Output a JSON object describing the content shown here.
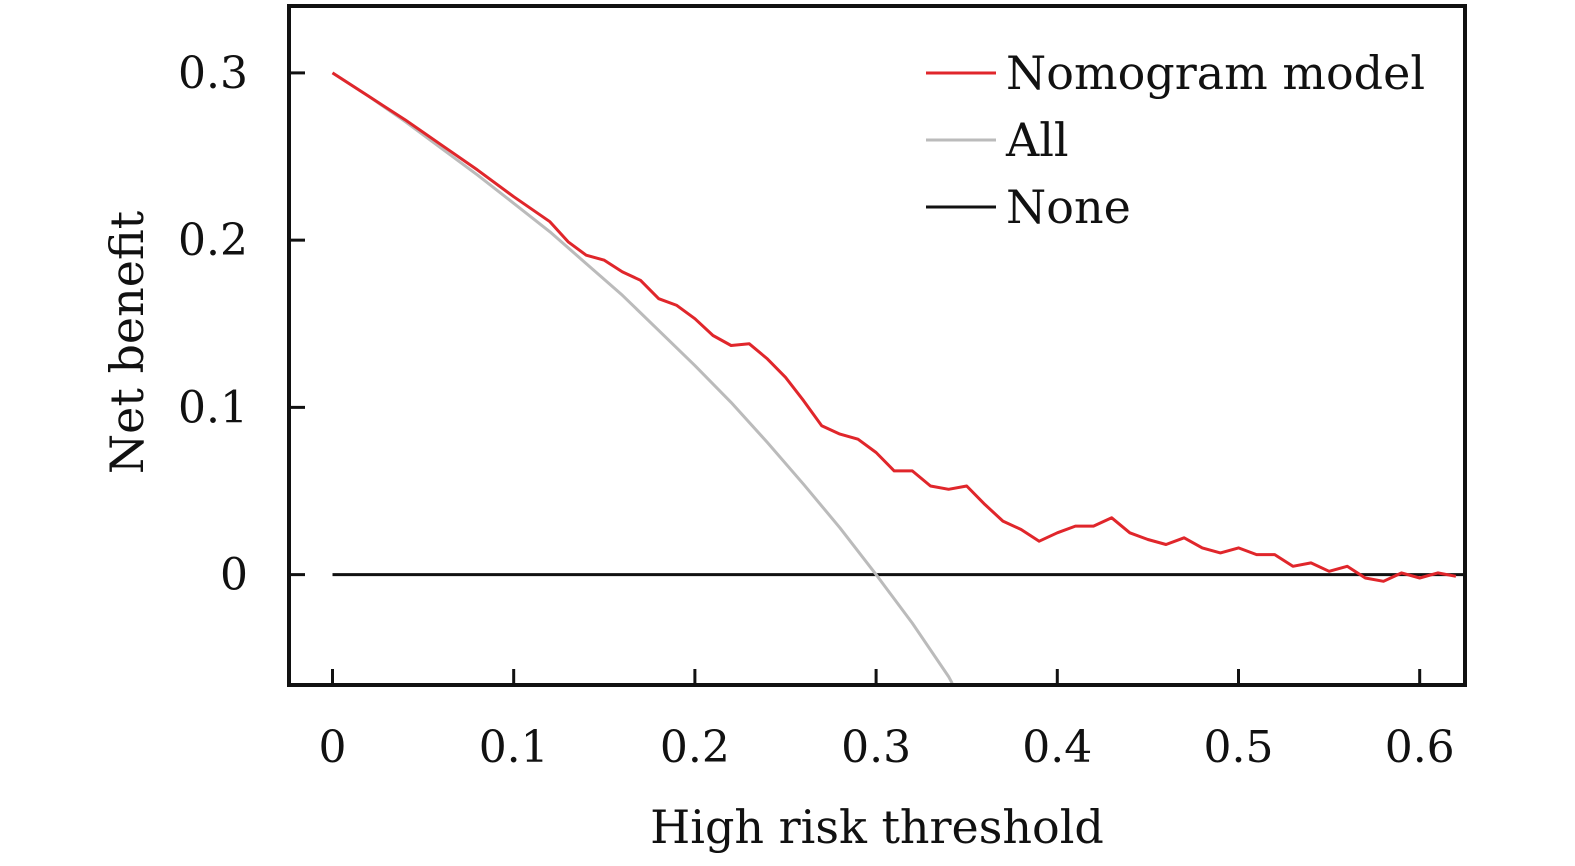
{
  "chart_data": {
    "type": "line",
    "xlabel": "High risk threshold",
    "ylabel": "Net benefit",
    "xlim": [
      -0.024,
      0.625
    ],
    "ylim": [
      -0.066,
      0.34
    ],
    "xticks": [
      0,
      0.1,
      0.2,
      0.3,
      0.4,
      0.5,
      0.6
    ],
    "xtick_labels": [
      "0",
      "0.1",
      "0.2",
      "0.3",
      "0.4",
      "0.5",
      "0.6"
    ],
    "yticks": [
      0,
      0.1,
      0.2,
      0.3
    ],
    "ytick_labels": [
      "0",
      "0.1",
      "0.2",
      "0.3"
    ],
    "grid": false,
    "legend": {
      "position": "top-right"
    },
    "series": [
      {
        "name": "Nomogram model",
        "color": "#e0262b",
        "x": [
          0,
          0.02,
          0.04,
          0.06,
          0.08,
          0.1,
          0.12,
          0.13,
          0.14,
          0.15,
          0.16,
          0.17,
          0.18,
          0.19,
          0.2,
          0.21,
          0.22,
          0.23,
          0.24,
          0.25,
          0.26,
          0.27,
          0.28,
          0.29,
          0.3,
          0.31,
          0.32,
          0.33,
          0.34,
          0.35,
          0.36,
          0.37,
          0.38,
          0.39,
          0.4,
          0.41,
          0.42,
          0.43,
          0.44,
          0.45,
          0.46,
          0.47,
          0.48,
          0.49,
          0.5,
          0.51,
          0.52,
          0.53,
          0.54,
          0.55,
          0.56,
          0.57,
          0.58,
          0.59,
          0.6,
          0.61,
          0.62
        ],
        "y": [
          0.3,
          0.286,
          0.272,
          0.257,
          0.242,
          0.226,
          0.211,
          0.199,
          0.191,
          0.188,
          0.181,
          0.176,
          0.165,
          0.161,
          0.153,
          0.143,
          0.137,
          0.138,
          0.129,
          0.118,
          0.104,
          0.089,
          0.084,
          0.081,
          0.073,
          0.062,
          0.062,
          0.053,
          0.051,
          0.053,
          0.042,
          0.032,
          0.027,
          0.02,
          0.025,
          0.029,
          0.029,
          0.034,
          0.025,
          0.021,
          0.018,
          0.022,
          0.016,
          0.013,
          0.016,
          0.012,
          0.012,
          0.005,
          0.007,
          0.002,
          0.005,
          -0.002,
          -0.004,
          0.001,
          -0.002,
          0.001,
          -0.001
        ]
      },
      {
        "name": "All",
        "color": "#bbbbbb",
        "x": [
          0,
          0.02,
          0.04,
          0.06,
          0.08,
          0.1,
          0.12,
          0.14,
          0.16,
          0.18,
          0.2,
          0.22,
          0.24,
          0.26,
          0.28,
          0.3,
          0.32,
          0.34,
          0.342
        ],
        "y": [
          0.3,
          0.286,
          0.271,
          0.255,
          0.239,
          0.222,
          0.205,
          0.186,
          0.167,
          0.146,
          0.125,
          0.103,
          0.079,
          0.054,
          0.028,
          0.0,
          -0.029,
          -0.061,
          -0.065
        ]
      },
      {
        "name": "None",
        "color": "#111111",
        "x": [
          0,
          0.625
        ],
        "y": [
          0,
          0
        ]
      }
    ]
  }
}
